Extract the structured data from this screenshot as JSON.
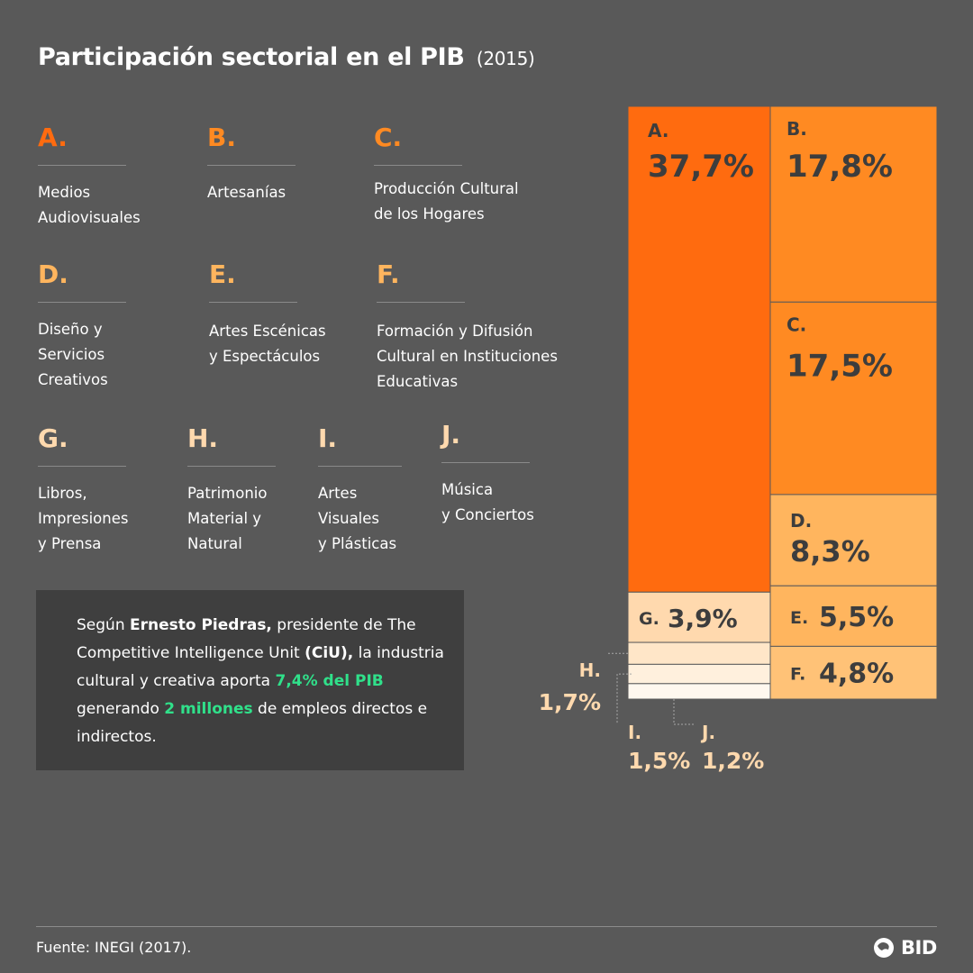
{
  "title": {
    "main": "Participación sectorial en el PIB",
    "year": "(2015)"
  },
  "legend": [
    {
      "letter": "A.",
      "name": "Medios\nAudiovisuales",
      "color": "#ff6b0f"
    },
    {
      "letter": "B.",
      "name": "Artesanías",
      "color": "#ff8a22"
    },
    {
      "letter": "C.",
      "name": "Producción Cultural\nde los Hogares",
      "color": "#ff8a22"
    },
    {
      "letter": "D.",
      "name": "Diseño y\nServicios\nCreativos",
      "color": "#ffb55e"
    },
    {
      "letter": "E.",
      "name": "Artes Escénicas\ny Espectáculos",
      "color": "#ffb55e"
    },
    {
      "letter": "F.",
      "name": "Formación y Difusión\nCultural en Instituciones\nEducativas",
      "color": "#ffb55e"
    },
    {
      "letter": "G.",
      "name": "Libros,\nImpresiones\ny Prensa",
      "color": "#ffd9ae"
    },
    {
      "letter": "H.",
      "name": "Patrimonio\nMaterial y\nNatural",
      "color": "#ffd9ae"
    },
    {
      "letter": "I.",
      "name": "Artes\nVisuales\ny Plásticas",
      "color": "#ffd9ae"
    },
    {
      "letter": "J.",
      "name": "Música\ny Conciertos",
      "color": "#ffd9ae"
    }
  ],
  "quote": {
    "p1": "Según ",
    "name": "Ernesto Piedras,",
    "p2": " presidente de The Competitive Intelligence Unit ",
    "org": "(CiU),",
    "p3": " la industria cultural y creativa aporta ",
    "hl1": "7,4% del PIB",
    "p4": " generando ",
    "hl2": "2 millones",
    "p5": " de empleos directos e indirectos."
  },
  "chart_data": {
    "type": "treemap",
    "title": "Participación sectorial en el PIB (2015)",
    "series": [
      {
        "letter": "A.",
        "label": "37,7%",
        "value": 37.7,
        "color": "#ff6b0f",
        "text_color": "#3d3d3d"
      },
      {
        "letter": "B.",
        "label": "17,8%",
        "value": 17.8,
        "color": "#ff8a22",
        "text_color": "#3d3d3d"
      },
      {
        "letter": "C.",
        "label": "17,5%",
        "value": 17.5,
        "color": "#ff8a22",
        "text_color": "#3d3d3d"
      },
      {
        "letter": "D.",
        "label": "8,3%",
        "value": 8.3,
        "color": "#ffb55e",
        "text_color": "#3d3d3d"
      },
      {
        "letter": "E.",
        "label": "5,5%",
        "value": 5.5,
        "color": "#ffb55e",
        "text_color": "#3d3d3d"
      },
      {
        "letter": "F.",
        "label": "4,8%",
        "value": 4.8,
        "color": "#ffc277",
        "text_color": "#3d3d3d"
      },
      {
        "letter": "G.",
        "label": "3,9%",
        "value": 3.9,
        "color": "#ffd9ae",
        "text_color": "#3d3d3d"
      },
      {
        "letter": "H.",
        "label": "1,7%",
        "value": 1.7,
        "color": "#ffe6c8",
        "text_color": "#ffd9ae"
      },
      {
        "letter": "I.",
        "label": "1,5%",
        "value": 1.5,
        "color": "#fff0dd",
        "text_color": "#ffd9ae"
      },
      {
        "letter": "J.",
        "label": "1,2%",
        "value": 1.2,
        "color": "#fff8ef",
        "text_color": "#ffd9ae"
      }
    ]
  },
  "footer": {
    "source": "Fuente: INEGI (2017).",
    "logo": "BID"
  }
}
